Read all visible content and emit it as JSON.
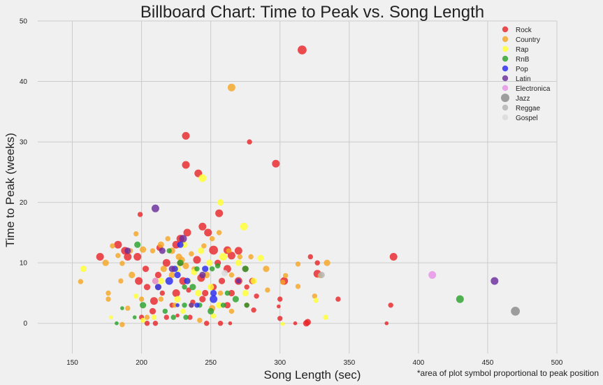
{
  "chart_data": {
    "type": "scatter",
    "title": "Billboard Chart: Time to Peak vs. Song Length",
    "xlabel": "Song Length (sec)",
    "ylabel": "Time to Peak (weeks)",
    "footnote": "*area of plot symbol proportional to peak position",
    "xlim": [
      125,
      500
    ],
    "ylim": [
      -5,
      50
    ],
    "xticks": [
      "150",
      "200",
      "250",
      "300",
      "350",
      "400",
      "450",
      "500"
    ],
    "yticks": [
      "0",
      "10",
      "20",
      "30",
      "40",
      "50"
    ],
    "grid": true,
    "legend_position": "top-right",
    "marker_size_encodes": "peak position",
    "series": [
      {
        "name": "Rock",
        "color": "#e8262a",
        "points": [
          [
            316,
            45.2,
            7
          ],
          [
            232,
            31,
            6
          ],
          [
            278,
            30,
            4
          ],
          [
            232,
            26.2,
            6
          ],
          [
            241,
            24.8,
            6
          ],
          [
            297,
            26.4,
            6
          ],
          [
            256,
            18.2,
            6
          ],
          [
            199,
            18,
            4
          ],
          [
            244,
            16,
            6
          ],
          [
            248,
            15,
            6
          ],
          [
            233,
            15,
            6
          ],
          [
            228,
            14,
            6
          ],
          [
            252,
            12.1,
            7
          ],
          [
            262,
            12.1,
            6
          ],
          [
            270,
            12,
            6
          ],
          [
            265,
            11.2,
            6
          ],
          [
            170,
            11,
            6
          ],
          [
            183,
            13,
            6
          ],
          [
            188,
            12,
            6
          ],
          [
            190,
            11,
            6
          ],
          [
            197,
            11,
            6
          ],
          [
            213,
            12.5,
            5
          ],
          [
            225,
            13,
            6
          ],
          [
            203,
            9,
            5
          ],
          [
            218,
            10,
            6
          ],
          [
            228,
            10,
            5
          ],
          [
            240,
            10.5,
            6
          ],
          [
            255,
            10,
            5
          ],
          [
            262,
            9,
            6
          ],
          [
            275,
            9,
            5
          ],
          [
            198,
            7,
            6
          ],
          [
            212,
            8,
            5
          ],
          [
            230,
            7,
            6
          ],
          [
            243,
            7.5,
            6
          ],
          [
            258,
            7,
            5
          ],
          [
            270,
            7,
            6
          ],
          [
            280,
            7,
            5
          ],
          [
            303,
            7,
            6
          ],
          [
            322,
            11,
            4
          ],
          [
            327,
            10,
            4
          ],
          [
            382,
            11,
            6
          ],
          [
            327,
            8.2,
            6
          ],
          [
            204,
            6,
            5
          ],
          [
            215,
            5,
            4
          ],
          [
            225,
            5,
            6
          ],
          [
            234,
            5.5,
            4
          ],
          [
            246,
            5,
            5
          ],
          [
            252,
            6,
            5
          ],
          [
            265,
            5,
            5
          ],
          [
            276,
            6,
            4
          ],
          [
            283,
            4.5,
            4
          ],
          [
            300,
            4,
            4
          ],
          [
            209,
            3.7,
            6
          ],
          [
            222,
            3,
            4
          ],
          [
            237,
            3.5,
            4
          ],
          [
            244,
            4,
            5
          ],
          [
            262,
            3,
            5
          ],
          [
            276,
            3,
            4
          ],
          [
            299,
            2.8,
            3
          ],
          [
            208,
            2,
            5
          ],
          [
            218,
            1,
            4
          ],
          [
            235,
            1,
            4
          ],
          [
            247,
            0,
            4
          ],
          [
            257,
            0,
            4
          ],
          [
            281,
            2.2,
            4
          ],
          [
            300,
            0.8,
            4
          ],
          [
            311,
            0,
            3
          ],
          [
            319,
            0,
            5
          ],
          [
            320,
            0.2,
            5
          ],
          [
            342,
            4,
            4
          ],
          [
            380,
            3,
            4
          ],
          [
            377,
            0,
            3
          ],
          [
            204,
            0,
            4
          ],
          [
            210,
            0,
            4
          ],
          [
            264,
            0,
            3
          ],
          [
            200,
            1,
            4
          ],
          [
            226,
            1.3,
            3
          ]
        ]
      },
      {
        "name": "Country",
        "color": "#f5a623",
        "points": [
          [
            265,
            39,
            6
          ],
          [
            156,
            6.9,
            4
          ],
          [
            174,
            10,
            5
          ],
          [
            179,
            12.8,
            4
          ],
          [
            183,
            11.2,
            4
          ],
          [
            186,
            9.9,
            4
          ],
          [
            192,
            12,
            4
          ],
          [
            196,
            14.8,
            4
          ],
          [
            201,
            12.2,
            5
          ],
          [
            208,
            12,
            4
          ],
          [
            214,
            13,
            5
          ],
          [
            219,
            14,
            4
          ],
          [
            222,
            12,
            5
          ],
          [
            227,
            11,
            5
          ],
          [
            229,
            10.5,
            5
          ],
          [
            236,
            11.5,
            4
          ],
          [
            251,
            14,
            4
          ],
          [
            256,
            15,
            4
          ],
          [
            263,
            12,
            4
          ],
          [
            271,
            11,
            4
          ],
          [
            279,
            11,
            4
          ],
          [
            185,
            7,
            4
          ],
          [
            193,
            8,
            5
          ],
          [
            210,
            7,
            5
          ],
          [
            216,
            9,
            5
          ],
          [
            222,
            8,
            5
          ],
          [
            232,
            9.5,
            5
          ],
          [
            238,
            9,
            4
          ],
          [
            247,
            8,
            5
          ],
          [
            265,
            8,
            4
          ],
          [
            290,
            9,
            5
          ],
          [
            176,
            5,
            4
          ],
          [
            176,
            4,
            4
          ],
          [
            200,
            4,
            4
          ],
          [
            214,
            4,
            4
          ],
          [
            224,
            3,
            4
          ],
          [
            236,
            3,
            4
          ],
          [
            251,
            2.5,
            5
          ],
          [
            265,
            2,
            4
          ],
          [
            291,
            5.5,
            4
          ],
          [
            302,
            6.8,
            4
          ],
          [
            304,
            7.9,
            4
          ],
          [
            313,
            9.8,
            4
          ],
          [
            313,
            6.1,
            4
          ],
          [
            329,
            7.9,
            4
          ],
          [
            334,
            10,
            5
          ],
          [
            325,
            4.5,
            4
          ],
          [
            190,
            2.5,
            4
          ],
          [
            186,
            -0.2,
            4
          ],
          [
            204,
            1,
            4
          ],
          [
            242,
            0.5,
            4
          ],
          [
            212,
            6,
            5
          ],
          [
            257,
            5,
            4
          ],
          [
            245,
            12.8,
            4
          ]
        ]
      },
      {
        "name": "Rap",
        "color": "#ffff33",
        "points": [
          [
            244,
            24,
            6
          ],
          [
            257,
            20,
            5
          ],
          [
            274,
            16,
            6
          ],
          [
            158,
            9,
            5
          ],
          [
            231,
            13,
            5
          ],
          [
            243,
            12,
            5
          ],
          [
            259,
            11,
            6
          ],
          [
            286,
            10.8,
            5
          ],
          [
            226,
            9,
            5
          ],
          [
            238,
            8.5,
            5
          ],
          [
            249,
            10,
            5
          ],
          [
            270,
            10,
            5
          ],
          [
            214,
            7,
            5
          ],
          [
            234,
            7,
            4
          ],
          [
            250,
            6,
            5
          ],
          [
            275,
            5,
            5
          ],
          [
            281,
            7,
            5
          ],
          [
            196,
            4.5,
            4
          ],
          [
            226,
            4,
            5
          ],
          [
            241,
            5,
            5
          ],
          [
            256,
            3,
            5
          ],
          [
            230,
            2,
            4
          ],
          [
            209,
            1,
            4
          ],
          [
            201,
            0.5,
            4
          ],
          [
            252,
            1.2,
            4
          ],
          [
            326,
            3.8,
            4
          ],
          [
            333,
            1,
            4
          ],
          [
            302,
            -0.1,
            3
          ],
          [
            178,
            1,
            3
          ]
        ]
      },
      {
        "name": "RnB",
        "color": "#2aa12a",
        "points": [
          [
            197,
            13,
            5
          ],
          [
            220,
            12,
            4
          ],
          [
            228,
            10,
            5
          ],
          [
            240,
            9,
            4
          ],
          [
            251,
            9,
            4
          ],
          [
            275,
            9,
            5
          ],
          [
            231,
            6,
            4
          ],
          [
            237,
            6,
            5
          ],
          [
            262,
            5,
            4
          ],
          [
            201,
            3,
            5
          ],
          [
            217,
            2,
            4
          ],
          [
            231,
            3,
            4
          ],
          [
            242,
            3,
            4
          ],
          [
            250,
            2,
            5
          ],
          [
            259,
            3,
            4
          ],
          [
            268,
            4,
            5
          ],
          [
            276,
            3,
            4
          ],
          [
            223,
            1,
            4
          ],
          [
            232,
            1,
            4
          ],
          [
            195,
            1,
            3
          ],
          [
            182,
            0,
            3
          ],
          [
            430,
            4,
            6
          ],
          [
            186,
            2.5,
            3
          ],
          [
            255,
            9.5,
            4
          ]
        ]
      },
      {
        "name": "Pop",
        "color": "#2a2aee",
        "points": [
          [
            212,
            6,
            5
          ],
          [
            220,
            7,
            6
          ],
          [
            226,
            8,
            5
          ],
          [
            233,
            7,
            5
          ],
          [
            246,
            9,
            5
          ],
          [
            252,
            5,
            5
          ],
          [
            240,
            3,
            4
          ],
          [
            226,
            3,
            3
          ],
          [
            252,
            4,
            6
          ],
          [
            224,
            9,
            5
          ],
          [
            228,
            13,
            5
          ]
        ]
      },
      {
        "name": "Latin",
        "color": "#6a2d9c",
        "points": [
          [
            210,
            19,
            6
          ],
          [
            190,
            12,
            5
          ],
          [
            230,
            14,
            6
          ],
          [
            215,
            12,
            5
          ],
          [
            222,
            9,
            5
          ],
          [
            244,
            8,
            5
          ],
          [
            270,
            7,
            4
          ],
          [
            455,
            7,
            6
          ],
          [
            236,
            3,
            4
          ]
        ]
      },
      {
        "name": "Electronica",
        "color": "#e691e6",
        "points": [
          [
            410,
            8,
            6
          ],
          [
            210,
            7,
            5
          ]
        ]
      },
      {
        "name": "Jazz",
        "color": "#8a8a8a",
        "points": [
          [
            470,
            2,
            7
          ]
        ]
      },
      {
        "name": "Reggae",
        "color": "#b3b3b3",
        "points": [
          [
            330,
            8,
            5
          ]
        ]
      },
      {
        "name": "Gospel",
        "color": "#d9d9d9",
        "points": [
          [
            260,
            8.3,
            5
          ]
        ]
      }
    ]
  }
}
